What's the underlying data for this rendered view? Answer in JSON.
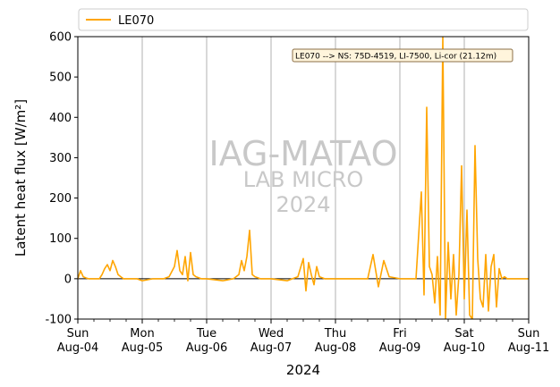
{
  "colors": {
    "series": "#FFA500",
    "grid": "#b0b0b0",
    "zero_line": "#000000",
    "watermark": "#c8c8c8",
    "annotation_bg": "#fff5dc",
    "annotation_border": "#8b6f47"
  },
  "chart_data": {
    "type": "line",
    "title": "",
    "xlabel": "2024",
    "ylabel": "Latent heat flux [W/m²]",
    "ylim": [
      -100,
      600
    ],
    "xlim": [
      "2024-08-04",
      "2024-08-11"
    ],
    "yticks": [
      -100,
      0,
      100,
      200,
      300,
      400,
      500,
      600
    ],
    "xticks": [
      {
        "day": "Sun",
        "date": "Aug-04"
      },
      {
        "day": "Mon",
        "date": "Aug-05"
      },
      {
        "day": "Tue",
        "date": "Aug-06"
      },
      {
        "day": "Wed",
        "date": "Aug-07"
      },
      {
        "day": "Thu",
        "date": "Aug-08"
      },
      {
        "day": "Fri",
        "date": "Aug-09"
      },
      {
        "day": "Sat",
        "date": "Aug-10"
      },
      {
        "day": "Sun",
        "date": "Aug-11"
      }
    ],
    "grid": "vertical",
    "legend_position": "top",
    "annotation": "LE070 --> NS: 75D-4519, LI-7500, Li-cor (21.12m)",
    "watermark": [
      "IAG-MATAO",
      "LAB MICRO",
      "2024"
    ],
    "series": [
      {
        "name": "LE070",
        "x": [
          "2024-08-04 00:00",
          "2024-08-04 01:00",
          "2024-08-04 02:00",
          "2024-08-04 03:00",
          "2024-08-04 04:00",
          "2024-08-04 06:00",
          "2024-08-04 08:00",
          "2024-08-04 09:00",
          "2024-08-04 10:00",
          "2024-08-04 11:00",
          "2024-08-04 12:00",
          "2024-08-04 13:00",
          "2024-08-04 14:00",
          "2024-08-04 15:00",
          "2024-08-04 16:00",
          "2024-08-04 17:00",
          "2024-08-04 18:00",
          "2024-08-04 20:00",
          "2024-08-04 22:00",
          "2024-08-05 00:00",
          "2024-08-05 04:00",
          "2024-08-05 08:00",
          "2024-08-05 10:00",
          "2024-08-05 12:00",
          "2024-08-05 13:00",
          "2024-08-05 14:00",
          "2024-08-05 15:00",
          "2024-08-05 16:00",
          "2024-08-05 17:00",
          "2024-08-05 18:00",
          "2024-08-05 19:00",
          "2024-08-05 20:00",
          "2024-08-05 22:00",
          "2024-08-06 00:00",
          "2024-08-06 06:00",
          "2024-08-06 10:00",
          "2024-08-06 12:00",
          "2024-08-06 13:00",
          "2024-08-06 14:00",
          "2024-08-06 15:00",
          "2024-08-06 16:00",
          "2024-08-06 17:00",
          "2024-08-06 18:00",
          "2024-08-06 20:00",
          "2024-08-06 22:00",
          "2024-08-07 00:00",
          "2024-08-07 06:00",
          "2024-08-07 10:00",
          "2024-08-07 12:00",
          "2024-08-07 13:00",
          "2024-08-07 14:00",
          "2024-08-07 15:00",
          "2024-08-07 16:00",
          "2024-08-07 17:00",
          "2024-08-07 18:00",
          "2024-08-07 20:00",
          "2024-08-08 00:00",
          "2024-08-08 06:00",
          "2024-08-08 12:00",
          "2024-08-08 14:00",
          "2024-08-08 16:00",
          "2024-08-08 18:00",
          "2024-08-08 20:00",
          "2024-08-09 00:00",
          "2024-08-09 06:00",
          "2024-08-09 08:00",
          "2024-08-09 09:00",
          "2024-08-09 10:00",
          "2024-08-09 11:00",
          "2024-08-09 12:00",
          "2024-08-09 13:00",
          "2024-08-09 14:00",
          "2024-08-09 15:00",
          "2024-08-09 16:00",
          "2024-08-09 17:00",
          "2024-08-09 18:00",
          "2024-08-09 19:00",
          "2024-08-09 20:00",
          "2024-08-09 21:00",
          "2024-08-09 22:00",
          "2024-08-09 23:00",
          "2024-08-10 00:00",
          "2024-08-10 01:00",
          "2024-08-10 02:00",
          "2024-08-10 03:00",
          "2024-08-10 04:00",
          "2024-08-10 05:00",
          "2024-08-10 06:00",
          "2024-08-10 07:00",
          "2024-08-10 08:00",
          "2024-08-10 09:00",
          "2024-08-10 10:00",
          "2024-08-10 11:00",
          "2024-08-10 12:00",
          "2024-08-10 13:00",
          "2024-08-10 14:00",
          "2024-08-10 15:00",
          "2024-08-10 16:00",
          "2024-08-10 18:00",
          "2024-08-10 20:00",
          "2024-08-10 22:00",
          "2024-08-11 00:00"
        ],
        "y": [
          0,
          20,
          5,
          2,
          0,
          0,
          0,
          10,
          25,
          35,
          20,
          45,
          30,
          10,
          5,
          0,
          0,
          0,
          0,
          -5,
          0,
          0,
          5,
          30,
          70,
          20,
          10,
          55,
          -5,
          65,
          10,
          5,
          0,
          0,
          -5,
          0,
          10,
          45,
          20,
          55,
          120,
          10,
          5,
          0,
          0,
          0,
          -5,
          5,
          50,
          -30,
          40,
          10,
          -15,
          30,
          5,
          0,
          0,
          0,
          0,
          60,
          -20,
          45,
          5,
          0,
          0,
          215,
          -40,
          425,
          30,
          10,
          -60,
          55,
          -90,
          600,
          -100,
          90,
          -50,
          60,
          -90,
          10,
          280,
          -50,
          170,
          -90,
          -100,
          330,
          50,
          -50,
          -70,
          60,
          -80,
          30,
          60,
          -70,
          25,
          0,
          5,
          0,
          0,
          0,
          0,
          0
        ]
      }
    ]
  }
}
